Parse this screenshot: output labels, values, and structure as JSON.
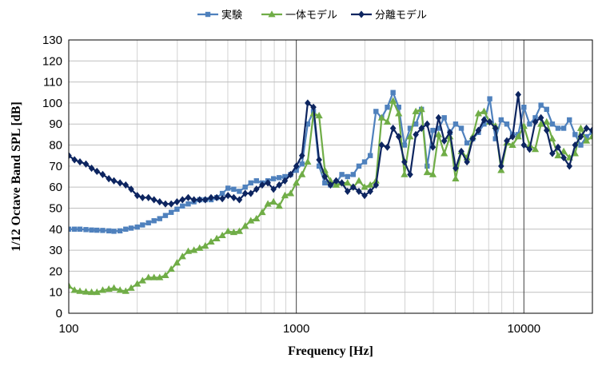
{
  "chart_data": {
    "type": "line",
    "title": "",
    "xlabel": "Frequency [Hz]",
    "ylabel": "1/12 Octave Band SPL [dB]",
    "xscale": "log",
    "xlim": [
      100,
      20000
    ],
    "ylim": [
      0,
      130
    ],
    "x_ticks": [
      100,
      1000,
      10000
    ],
    "x_tick_labels": [
      "100",
      "1000",
      "10000"
    ],
    "y_ticks": [
      0,
      10,
      20,
      30,
      40,
      50,
      60,
      70,
      80,
      90,
      100,
      110,
      120,
      130
    ],
    "y_tick_labels": [
      "0",
      "10",
      "20",
      "30",
      "40",
      "50",
      "60",
      "70",
      "80",
      "90",
      "100",
      "110",
      "120",
      "130"
    ],
    "grid": true,
    "legend_position": "top",
    "series": [
      {
        "name": "実験",
        "color": "#4f81bd",
        "marker": "square",
        "x": [
          100,
          106,
          112,
          119,
          126,
          133,
          141,
          150,
          158,
          168,
          178,
          188,
          200,
          211,
          224,
          237,
          251,
          266,
          282,
          299,
          316,
          335,
          355,
          376,
          398,
          422,
          447,
          473,
          501,
          531,
          562,
          596,
          631,
          668,
          708,
          750,
          794,
          841,
          891,
          944,
          1000,
          1059,
          1122,
          1189,
          1259,
          1334,
          1413,
          1496,
          1585,
          1679,
          1778,
          1884,
          1995,
          2113,
          2239,
          2371,
          2512,
          2661,
          2818,
          2985,
          3162,
          3350,
          3548,
          3758,
          3981,
          4217,
          4467,
          4732,
          5012,
          5309,
          5623,
          5957,
          6310,
          6683,
          7079,
          7499,
          7943,
          8414,
          8913,
          9441,
          10000,
          10593,
          11220,
          11885,
          12589,
          13335,
          14125,
          14962,
          15849,
          16788,
          17783,
          18836,
          19953
        ],
        "y": [
          40,
          40,
          40,
          39.8,
          39.6,
          39.5,
          39.4,
          39.2,
          39,
          39.2,
          40,
          40.5,
          41,
          42,
          43,
          44,
          45,
          46.5,
          48,
          49.5,
          51,
          52,
          53,
          54,
          54,
          54,
          55,
          57,
          59.5,
          59,
          58,
          60,
          62,
          63,
          62,
          63,
          64,
          64.5,
          65,
          66,
          68,
          71,
          90,
          96,
          70,
          62,
          61,
          62,
          66,
          65,
          66,
          70,
          72,
          75,
          96,
          93,
          98,
          105,
          98,
          80,
          88,
          90,
          97,
          70,
          87,
          88,
          93,
          86,
          90,
          88,
          81,
          83,
          86,
          90,
          102,
          83,
          92,
          90,
          85,
          85,
          98,
          90,
          93,
          99,
          97,
          90,
          88,
          88,
          92,
          85,
          80,
          84,
          86
        ]
      },
      {
        "name": "一体モデル",
        "color": "#70ad47",
        "marker": "triangle",
        "x": [
          100,
          106,
          112,
          119,
          126,
          133,
          141,
          150,
          158,
          168,
          178,
          188,
          200,
          211,
          224,
          237,
          251,
          266,
          282,
          299,
          316,
          335,
          355,
          376,
          398,
          422,
          447,
          473,
          501,
          531,
          562,
          596,
          631,
          668,
          708,
          750,
          794,
          841,
          891,
          944,
          1000,
          1059,
          1122,
          1189,
          1259,
          1334,
          1413,
          1496,
          1585,
          1679,
          1778,
          1884,
          1995,
          2113,
          2239,
          2371,
          2512,
          2661,
          2818,
          2985,
          3162,
          3350,
          3548,
          3758,
          3981,
          4217,
          4467,
          4732,
          5012,
          5309,
          5623,
          5957,
          6310,
          6683,
          7079,
          7499,
          7943,
          8414,
          8913,
          9441,
          10000,
          10593,
          11220,
          11885,
          12589,
          13335,
          14125,
          14962,
          15849,
          16788,
          17783,
          18836,
          19953
        ],
        "y": [
          13,
          11,
          10.5,
          10.2,
          10,
          10,
          11,
          11.5,
          12,
          11,
          10.5,
          12,
          14,
          15.5,
          17,
          17,
          17,
          18,
          21,
          24,
          27,
          29.5,
          30,
          31,
          32,
          34,
          35.5,
          37,
          39,
          38.5,
          39,
          41.5,
          44,
          45,
          48,
          52,
          53,
          51,
          56,
          57,
          62,
          66,
          72,
          95,
          94,
          68,
          63,
          61,
          62,
          62,
          60,
          63,
          60,
          61,
          63,
          93,
          91,
          101,
          95,
          66,
          84,
          96,
          97,
          67,
          66,
          85,
          76,
          84,
          64,
          77,
          74,
          84,
          95,
          96,
          91,
          89,
          68,
          81,
          80,
          84,
          89,
          80,
          78,
          90,
          91,
          83,
          75,
          77,
          74,
          76,
          88,
          82,
          84
        ]
      },
      {
        "name": "分離モデル",
        "color": "#0d2560",
        "marker": "diamond",
        "x": [
          100,
          106,
          112,
          119,
          126,
          133,
          141,
          150,
          158,
          168,
          178,
          188,
          200,
          211,
          224,
          237,
          251,
          266,
          282,
          299,
          316,
          335,
          355,
          376,
          398,
          422,
          447,
          473,
          501,
          531,
          562,
          596,
          631,
          668,
          708,
          750,
          794,
          841,
          891,
          944,
          1000,
          1059,
          1122,
          1189,
          1259,
          1334,
          1413,
          1496,
          1585,
          1679,
          1778,
          1884,
          1995,
          2113,
          2239,
          2371,
          2512,
          2661,
          2818,
          2985,
          3162,
          3350,
          3548,
          3758,
          3981,
          4217,
          4467,
          4732,
          5012,
          5309,
          5623,
          5957,
          6310,
          6683,
          7079,
          7499,
          7943,
          8414,
          8913,
          9441,
          10000,
          10593,
          11220,
          11885,
          12589,
          13335,
          14125,
          14962,
          15849,
          16788,
          17783,
          18836,
          19953
        ],
        "y": [
          75,
          73,
          72,
          71,
          69,
          67.5,
          66,
          64,
          63,
          62,
          61,
          59,
          56,
          55,
          55,
          54,
          53,
          52,
          52,
          53,
          54,
          55,
          54,
          54,
          54,
          55,
          55,
          54.5,
          56,
          55,
          54,
          57,
          57,
          59,
          61,
          62,
          59,
          61,
          63,
          66,
          70,
          75,
          100,
          98,
          73,
          65,
          61,
          63,
          62,
          58,
          60,
          58,
          56,
          58,
          61,
          80,
          79,
          88,
          84,
          72,
          66,
          85,
          88,
          90,
          79,
          93,
          82,
          86,
          69,
          77,
          72,
          83,
          87,
          92,
          91,
          88,
          70,
          82,
          84,
          104,
          80,
          78,
          91,
          93,
          87,
          76,
          79,
          74,
          70,
          80,
          84,
          88,
          87
        ]
      }
    ]
  }
}
